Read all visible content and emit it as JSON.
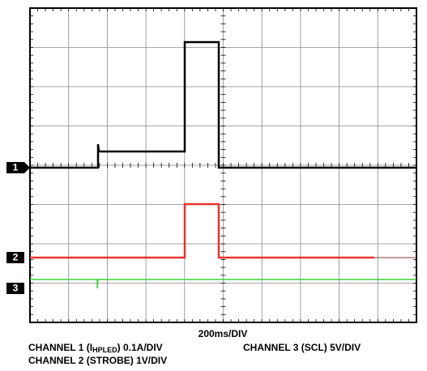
{
  "channel_markers": [
    "1",
    "2",
    "3"
  ],
  "timebase": "200ms/DIV",
  "captions": {
    "channel1": {
      "prefix": "CHANNEL 1 (I",
      "subscript": "HPLED",
      "suffix": ") 0.1A/DIV"
    },
    "channel3": "CHANNEL 3 (SCL) 5V/DIV",
    "channel2": "CHANNEL 2 (STROBE) 1V/DIV"
  }
}
